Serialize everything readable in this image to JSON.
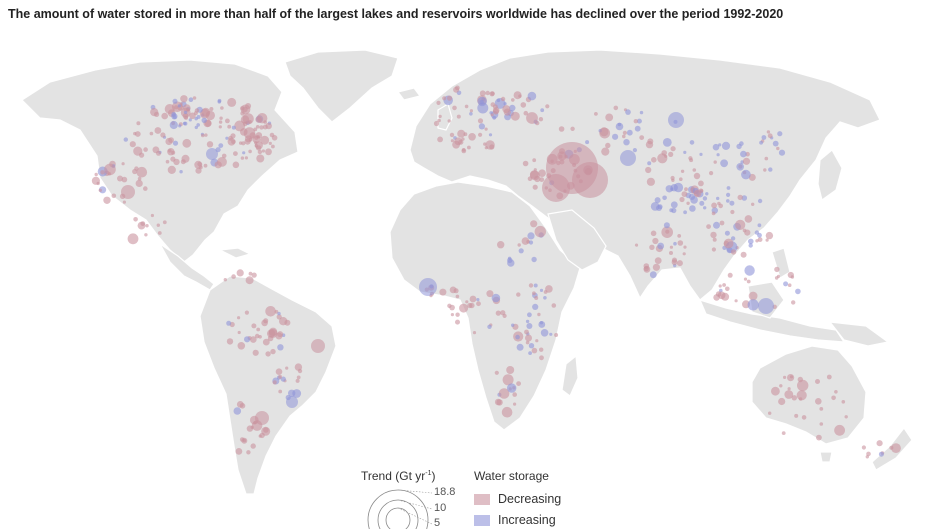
{
  "subtitle": "The amount of water stored in more than half of the largest lakes and reservoirs worldwide has declined over the period 1992-2020",
  "legend": {
    "trend_title": "Trend (Gt yr",
    "trend_exp": "-1",
    "trend_close": ")",
    "sizes": [
      "18.8",
      "10",
      "5"
    ],
    "storage_title": "Water storage",
    "decreasing_label": "Decreasing",
    "increasing_label": "Increasing"
  },
  "colors": {
    "decreasing": "#c9929e",
    "increasing": "#8f95d8",
    "land": "#e3e3e3"
  }
}
